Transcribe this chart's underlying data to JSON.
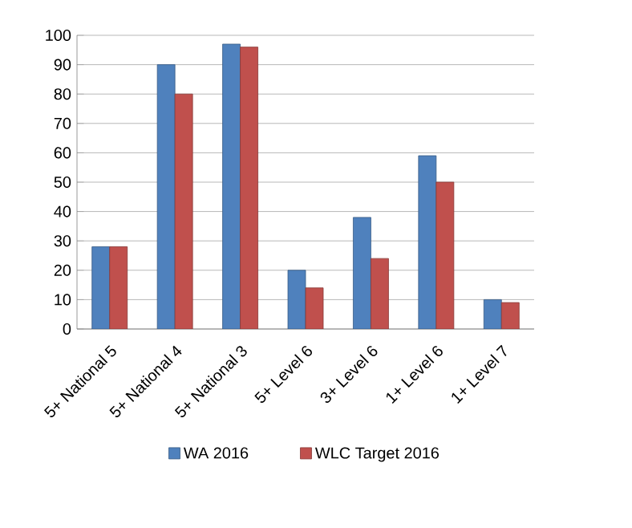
{
  "chart_data": {
    "type": "bar",
    "categories": [
      "5+ National 5",
      "5+ National 4",
      "5+ National 3",
      "5+ Level 6",
      "3+ Level 6",
      "1+ Level 6",
      "1+ Level 7"
    ],
    "series": [
      {
        "name": "WA 2016",
        "color": "#4f81bd",
        "values": [
          28,
          90,
          97,
          20,
          38,
          59,
          10
        ]
      },
      {
        "name": "WLC Target 2016",
        "color": "#c0504d",
        "values": [
          28,
          80,
          96,
          14,
          24,
          50,
          9
        ]
      }
    ],
    "ylim": [
      0,
      100
    ],
    "yticks": [
      0,
      10,
      20,
      30,
      40,
      50,
      60,
      70,
      80,
      90,
      100
    ],
    "grid": "y",
    "legend": "bottom"
  }
}
